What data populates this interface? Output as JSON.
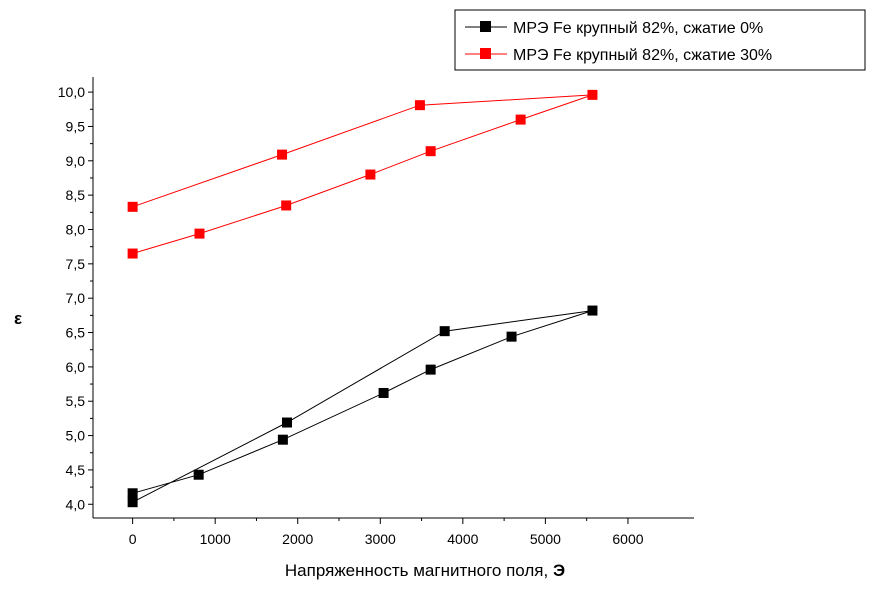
{
  "chart_data": {
    "type": "line",
    "title": "",
    "xlabel_main": "Напряженность магнитного поля, ",
    "xlabel_unit": "Э",
    "ylabel": "ε",
    "xlim": [
      -480,
      6800
    ],
    "ylim": [
      3.8,
      10.22
    ],
    "xticks": [
      0,
      1000,
      2000,
      3000,
      4000,
      5000,
      6000
    ],
    "xtick_labels": [
      "0",
      "1000",
      "2000",
      "3000",
      "4000",
      "5000",
      "6000"
    ],
    "yticks": [
      4.0,
      4.5,
      5.0,
      5.5,
      6.0,
      6.5,
      7.0,
      7.5,
      8.0,
      8.5,
      9.0,
      9.5,
      10.0
    ],
    "ytick_labels": [
      "4,0",
      "4,5",
      "5,0",
      "5,5",
      "6,0",
      "6,5",
      "7,0",
      "7,5",
      "8,0",
      "8,5",
      "9,0",
      "9,5",
      "10,0"
    ],
    "grid": false,
    "legend_position": "top-right",
    "series": [
      {
        "name": "МРЭ Fe крупный 82%, сжатие 0%",
        "color": "#000000",
        "marker": "square",
        "points": [
          [
            0,
            4.03
          ],
          [
            1870,
            5.19
          ],
          [
            3780,
            6.52
          ],
          [
            5570,
            6.82
          ],
          [
            4590,
            6.44
          ],
          [
            3610,
            5.96
          ],
          [
            3040,
            5.62
          ],
          [
            1820,
            4.94
          ],
          [
            800,
            4.43
          ],
          [
            0,
            4.16
          ]
        ]
      },
      {
        "name": "МРЭ Fe крупный 82%, сжатие 30%",
        "color": "#ff0000",
        "marker": "square",
        "points": [
          [
            0,
            8.33
          ],
          [
            1810,
            9.09
          ],
          [
            3480,
            9.81
          ],
          [
            5570,
            9.96
          ],
          [
            4700,
            9.6
          ],
          [
            3610,
            9.14
          ],
          [
            2880,
            8.8
          ],
          [
            1860,
            8.35
          ],
          [
            810,
            7.94
          ],
          [
            0,
            7.65
          ]
        ]
      }
    ]
  }
}
